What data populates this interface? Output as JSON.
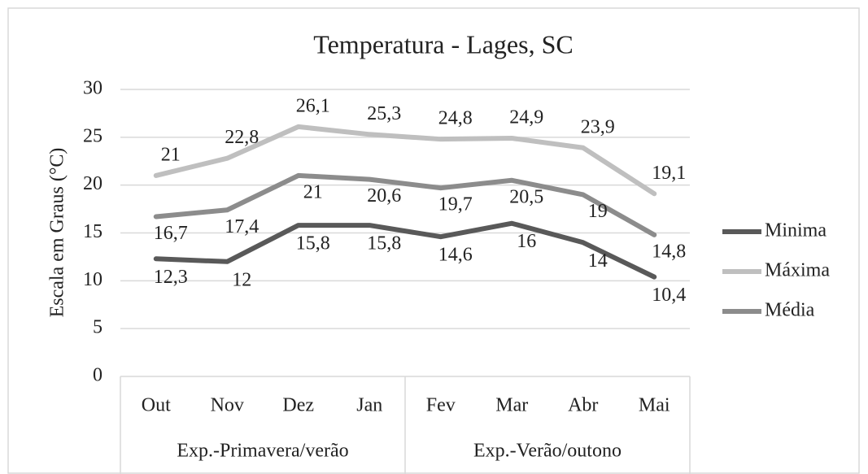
{
  "chart_data": {
    "type": "line",
    "title": "Temperatura - Lages, SC",
    "y_label": "Escala em Graus (°C)",
    "groups": [
      {
        "name": "Exp.-Primavera/verão",
        "categories": [
          "Out",
          "Nov",
          "Dez",
          "Jan"
        ]
      },
      {
        "name": "Exp.-Verão/outono",
        "categories": [
          "Fev",
          "Mar",
          "Abr",
          "Mai"
        ]
      }
    ],
    "series": [
      {
        "name": "Minima",
        "color": "#595959",
        "values": [
          12.3,
          12,
          15.8,
          15.8,
          14.6,
          16,
          14,
          10.4
        ],
        "value_labels": [
          "12,3",
          "12",
          "15,8",
          "15,8",
          "14,6",
          "16",
          "14",
          "10,4"
        ]
      },
      {
        "name": "Máxima",
        "color": "#bfbfbf",
        "values": [
          21,
          22.8,
          26.1,
          25.3,
          24.8,
          24.9,
          23.9,
          19.1
        ],
        "value_labels": [
          "21",
          "22,8",
          "26,1",
          "25,3",
          "24,8",
          "24,9",
          "23,9",
          "19,1"
        ]
      },
      {
        "name": "Média",
        "color": "#8c8c8c",
        "values": [
          16.7,
          17.4,
          21,
          20.6,
          19.7,
          20.5,
          19,
          14.8
        ],
        "value_labels": [
          "16,7",
          "17,4",
          "21",
          "20,6",
          "19,7",
          "20,5",
          "19",
          "14,8"
        ]
      }
    ],
    "ylim": [
      0,
      30
    ],
    "yticks": [
      0,
      5,
      10,
      15,
      20,
      25,
      30
    ],
    "grid": true,
    "legend": "right"
  }
}
